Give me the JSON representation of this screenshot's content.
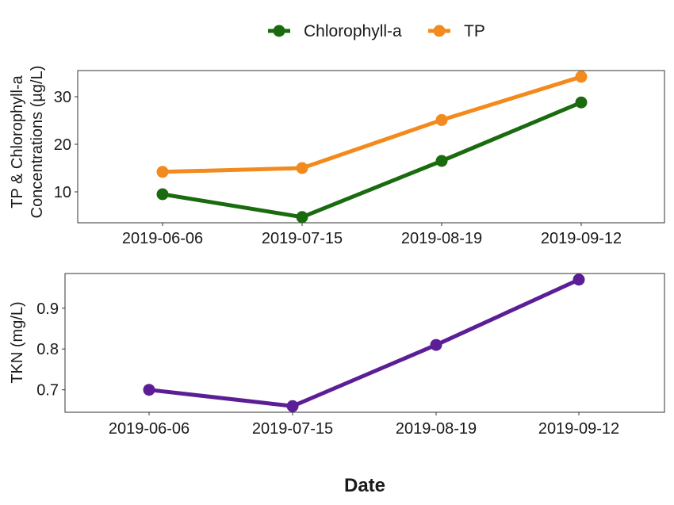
{
  "legend": {
    "items": [
      {
        "label": "Chlorophyll-a",
        "color": "#1a6b0f"
      },
      {
        "label": "TP",
        "color": "#f28a1e"
      }
    ]
  },
  "x_axis_title": "Date",
  "chart_data": [
    {
      "type": "line",
      "categories": [
        "2019-06-06",
        "2019-07-15",
        "2019-08-19",
        "2019-09-12"
      ],
      "ylabel_lines": [
        "TP & Chlorophyll-a",
        "Concentrations (µg/L)"
      ],
      "ylim": [
        3.5,
        35.5
      ],
      "yticks": [
        10,
        20,
        30
      ],
      "grid": false,
      "legend_position": "top",
      "series": [
        {
          "name": "Chlorophyll-a",
          "color": "#1a6b0f",
          "values": [
            9.5,
            4.7,
            16.5,
            28.8
          ]
        },
        {
          "name": "TP",
          "color": "#f28a1e",
          "values": [
            14.2,
            15.0,
            25.1,
            34.2
          ]
        }
      ]
    },
    {
      "type": "line",
      "categories": [
        "2019-06-06",
        "2019-07-15",
        "2019-08-19",
        "2019-09-12"
      ],
      "ylabel_lines": [
        "TKN (mg/L)"
      ],
      "ylim": [
        0.645,
        0.985
      ],
      "yticks": [
        0.7,
        0.8,
        0.9
      ],
      "grid": false,
      "series": [
        {
          "name": "TKN",
          "color": "#5b1e96",
          "values": [
            0.7,
            0.66,
            0.81,
            0.97
          ]
        }
      ]
    }
  ]
}
